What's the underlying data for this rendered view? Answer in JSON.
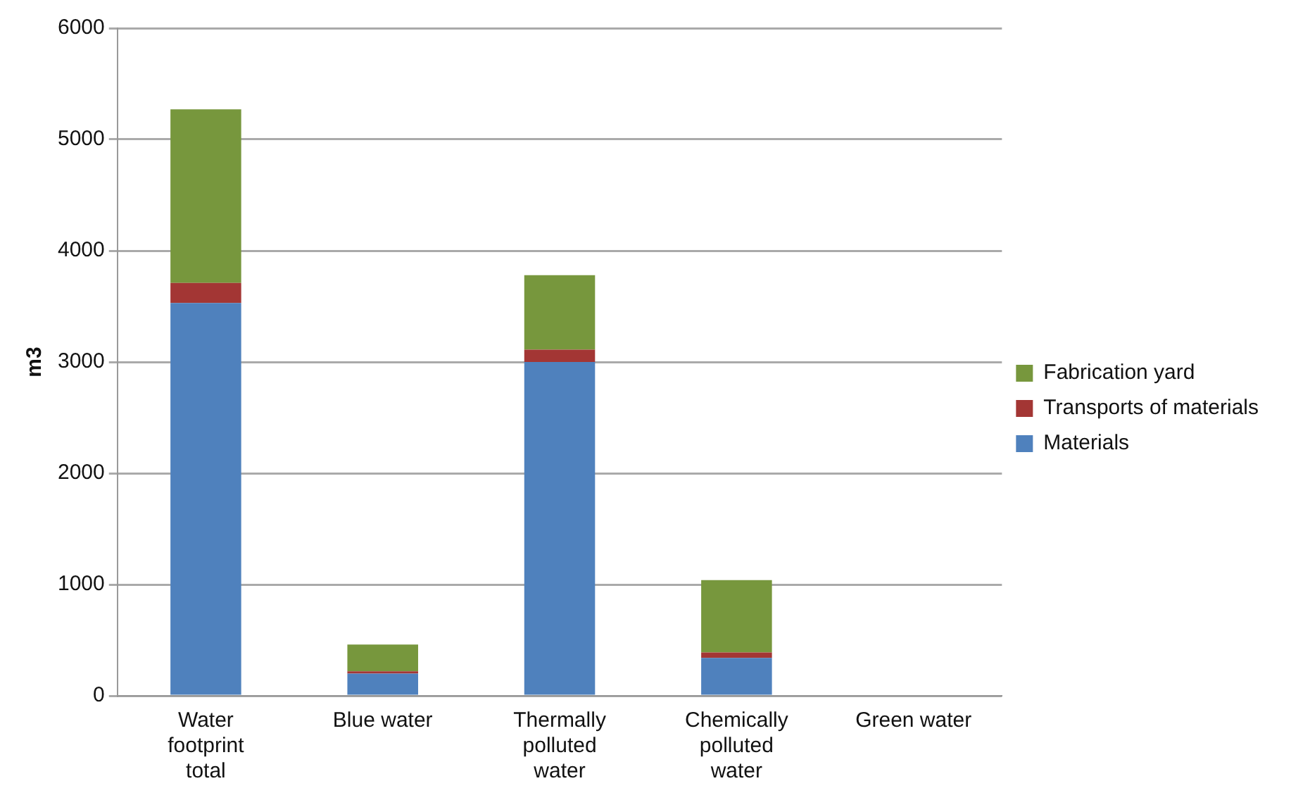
{
  "chart_data": {
    "type": "bar",
    "stacked": true,
    "ylabel": "m3",
    "categories": [
      "Water footprint total",
      "Blue water",
      "Thermally polluted water",
      "Chemically polluted water",
      "Green water"
    ],
    "ylim": [
      0,
      6000
    ],
    "yticks": [
      0,
      1000,
      2000,
      3000,
      4000,
      5000,
      6000
    ],
    "grid": "y",
    "legend": "right",
    "series": [
      {
        "name": "Materials",
        "color": "#4f81bd",
        "values": [
          3530,
          200,
          3000,
          340,
          0
        ]
      },
      {
        "name": "Transports of materials",
        "color": "#a33634",
        "values": [
          180,
          20,
          110,
          50,
          0
        ]
      },
      {
        "name": "Fabrication yard",
        "color": "#77973d",
        "values": [
          1560,
          240,
          670,
          650,
          0
        ]
      }
    ]
  }
}
